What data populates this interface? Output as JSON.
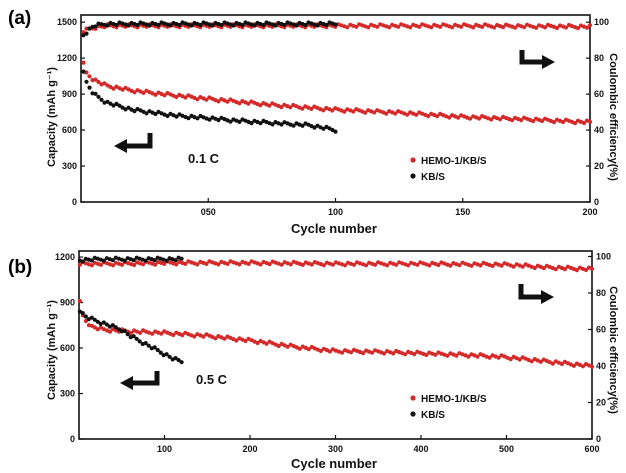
{
  "chart_data": [
    {
      "panel_label": "(a)",
      "type": "scatter",
      "xlabel": "Cycle number",
      "ylabel": "Capacity (mAh g⁻¹)",
      "y2label": "Coulombic efficiency(%)",
      "xlim": [
        0,
        200
      ],
      "ylim": [
        0,
        1560
      ],
      "y2lim": [
        0,
        104
      ],
      "x_ticks": [
        {
          "v": 50,
          "label": "050"
        },
        {
          "v": 100,
          "label": "100"
        },
        {
          "v": 150,
          "label": "150"
        },
        {
          "v": 200,
          "label": "200"
        }
      ],
      "y_ticks": [
        0,
        300,
        600,
        900,
        1200,
        1500
      ],
      "y_tick_labels": [
        "0",
        "300",
        "600",
        "900",
        "1200",
        "1500"
      ],
      "y2_ticks": [
        0,
        20,
        40,
        60,
        80,
        100
      ],
      "y2_tick_labels": [
        "0",
        "20",
        "40",
        "60",
        "80",
        "100"
      ],
      "rate_label": "0.1 C",
      "legend": [
        "HEMO-1/KB/S",
        "KB/S"
      ],
      "series": [
        {
          "name": "HEMO-1/KB/S",
          "axis": "capacity",
          "color": "#d42a2a",
          "x": [
            1,
            2,
            5,
            10,
            20,
            30,
            50,
            75,
            100,
            125,
            150,
            175,
            200
          ],
          "y": [
            1150,
            1080,
            1020,
            970,
            930,
            905,
            860,
            810,
            770,
            745,
            710,
            690,
            665
          ]
        },
        {
          "name": "KB/S",
          "axis": "capacity",
          "color": "#111111",
          "x": [
            1,
            2,
            5,
            10,
            20,
            30,
            40,
            50,
            60,
            75,
            90,
            100
          ],
          "y": [
            1100,
            1000,
            900,
            830,
            770,
            740,
            715,
            700,
            680,
            660,
            640,
            600
          ]
        },
        {
          "name": "HEMO-1/KB/S",
          "axis": "efficiency",
          "color": "#d42a2a",
          "x": [
            1,
            5,
            10,
            50,
            100,
            150,
            200
          ],
          "y": [
            95,
            97,
            98,
            98,
            98,
            98,
            97.5
          ]
        },
        {
          "name": "KB/S",
          "axis": "efficiency",
          "color": "#111111",
          "x": [
            1,
            5,
            10,
            50,
            100
          ],
          "y": [
            93,
            98,
            99,
            99,
            99
          ]
        }
      ]
    },
    {
      "panel_label": "(b)",
      "type": "scatter",
      "xlabel": "Cycle number",
      "ylabel": "Capacity (mAh g⁻¹)",
      "y2label": "Coulombic efficiency(%)",
      "xlim": [
        0,
        600
      ],
      "ylim": [
        0,
        1240
      ],
      "y2lim": [
        0,
        103
      ],
      "x_ticks": [
        {
          "v": 100,
          "label": "100"
        },
        {
          "v": 200,
          "label": "200"
        },
        {
          "v": 300,
          "label": "300"
        },
        {
          "v": 400,
          "label": "400"
        },
        {
          "v": 500,
          "label": "500"
        },
        {
          "v": 600,
          "label": "600"
        }
      ],
      "y_ticks": [
        0,
        300,
        600,
        900,
        1200
      ],
      "y_tick_labels": [
        "0",
        "300",
        "600",
        "900",
        "1200"
      ],
      "y2_ticks": [
        0,
        20,
        40,
        60,
        80,
        100
      ],
      "y2_tick_labels": [
        "0",
        "20",
        "40",
        "60",
        "80",
        "100"
      ],
      "rate_label": "0.5 C",
      "legend": [
        "HEMO-1/KB/S",
        "KB/S"
      ],
      "series": [
        {
          "name": "HEMO-1/KB/S",
          "axis": "capacity",
          "color": "#d42a2a",
          "x": [
            1,
            5,
            15,
            30,
            60,
            100,
            150,
            200,
            250,
            300,
            350,
            400,
            450,
            500,
            550,
            600
          ],
          "y": [
            900,
            800,
            740,
            720,
            710,
            700,
            680,
            650,
            610,
            580,
            575,
            565,
            555,
            540,
            510,
            480
          ]
        },
        {
          "name": "KB/S",
          "axis": "capacity",
          "color": "#111111",
          "x": [
            1,
            5,
            10,
            20,
            30,
            40,
            50,
            60,
            70,
            80,
            90,
            100,
            110,
            120
          ],
          "y": [
            850,
            820,
            800,
            780,
            760,
            740,
            720,
            680,
            650,
            620,
            590,
            560,
            530,
            510
          ]
        },
        {
          "name": "HEMO-1/KB/S",
          "axis": "efficiency",
          "color": "#d42a2a",
          "x": [
            1,
            50,
            100,
            200,
            300,
            400,
            500,
            550,
            600
          ],
          "y": [
            96,
            96,
            96.5,
            96.5,
            96,
            96,
            95.5,
            94,
            93
          ]
        },
        {
          "name": "KB/S",
          "axis": "efficiency",
          "color": "#111111",
          "x": [
            1,
            20,
            50,
            80,
            100,
            120
          ],
          "y": [
            98,
            98.5,
            98.5,
            98.5,
            98.5,
            98.5
          ]
        }
      ]
    }
  ]
}
